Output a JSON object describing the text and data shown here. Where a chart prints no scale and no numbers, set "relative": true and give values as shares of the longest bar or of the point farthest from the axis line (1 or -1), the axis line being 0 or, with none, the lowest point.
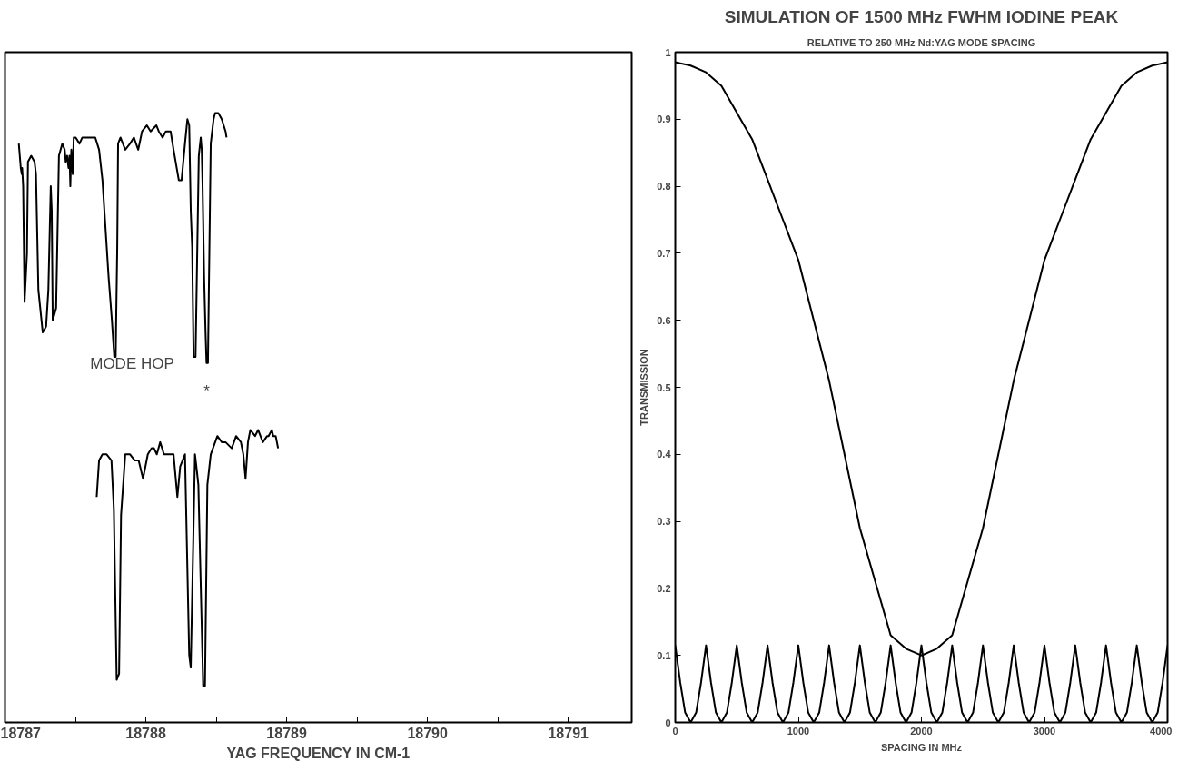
{
  "chart_data": [
    {
      "type": "line",
      "relative": true,
      "xlabel": "YAG FREQUENCY IN CM-1",
      "tick_labels": "x",
      "grid": false,
      "marker": "none",
      "line_style": "solid",
      "xlim": [
        18787,
        18791.45
      ],
      "xticks": [
        18787,
        {
          "value": 18787.5,
          "label": null
        },
        18788,
        {
          "value": 18788.5,
          "label": null
        },
        18789,
        {
          "value": 18789.5,
          "label": null
        },
        18790,
        {
          "value": 18790.5,
          "label": null
        },
        18791
      ],
      "annotations": [
        "MODE HOP",
        "*"
      ],
      "series": [
        {
          "color": "#000000",
          "x": [
            18787.098,
            18787.112,
            18787.119,
            18787.122,
            18787.129,
            18787.139,
            18787.156,
            18787.163,
            18787.186,
            18787.21,
            18787.22,
            18787.237,
            18787.268,
            18787.292,
            18787.308,
            18787.325,
            18787.332,
            18787.339,
            18787.363,
            18787.383,
            18787.407,
            18787.424,
            18787.431,
            18787.441,
            18787.451,
            18787.458,
            18787.464,
            18787.471,
            18787.481,
            18787.488,
            18787.502,
            18787.529,
            18787.549,
            18787.641,
            18787.668,
            18787.692,
            18787.736,
            18787.759,
            18787.776,
            18787.786,
            18787.79,
            18787.797,
            18787.803,
            18787.82,
            18787.854,
            18787.888,
            18787.915,
            18787.946,
            18787.973,
            18788.007,
            18788.034,
            18788.075,
            18788.092,
            18788.119,
            18788.142,
            18788.166,
            18788.176,
            18788.197,
            18788.234,
            18788.254,
            18788.278,
            18788.295,
            18788.308,
            18788.319,
            18788.329,
            18788.339,
            18788.353,
            18788.376,
            18788.39,
            18788.397,
            18788.403,
            18788.414,
            18788.424,
            18788.431,
            18788.441,
            18788.447,
            18788.461,
            18788.481,
            18788.492,
            18788.515,
            18788.539,
            18788.566,
            18788.573
          ],
          "values": [
            0.95,
            0.91,
            0.9,
            0.91,
            0.88,
            0.69,
            0.77,
            0.92,
            0.93,
            0.92,
            0.9,
            0.71,
            0.64,
            0.65,
            0.71,
            0.88,
            0.84,
            0.66,
            0.68,
            0.93,
            0.95,
            0.94,
            0.92,
            0.93,
            0.91,
            0.93,
            0.88,
            0.94,
            0.9,
            0.96,
            0.96,
            0.95,
            0.96,
            0.96,
            0.94,
            0.89,
            0.73,
            0.66,
            0.6,
            0.6,
            0.67,
            0.78,
            0.95,
            0.96,
            0.94,
            0.95,
            0.96,
            0.94,
            0.97,
            0.98,
            0.97,
            0.98,
            0.97,
            0.96,
            0.97,
            0.97,
            0.97,
            0.94,
            0.89,
            0.89,
            0.95,
            0.99,
            0.98,
            0.84,
            0.78,
            0.6,
            0.6,
            0.93,
            0.96,
            0.94,
            0.88,
            0.73,
            0.64,
            0.59,
            0.59,
            0.7,
            0.95,
            0.99,
            1.0,
            1.0,
            0.99,
            0.97,
            0.96
          ]
        },
        {
          "color": "#000000",
          "x": [
            18787.651,
            18787.668,
            18787.692,
            18787.722,
            18787.756,
            18787.773,
            18787.793,
            18787.81,
            18787.824,
            18787.854,
            18787.888,
            18787.922,
            18787.949,
            18787.98,
            18788.014,
            18788.041,
            18788.058,
            18788.078,
            18788.102,
            18788.129,
            18788.159,
            18788.173,
            18788.197,
            18788.224,
            18788.244,
            18788.278,
            18788.308,
            18788.319,
            18788.349,
            18788.359,
            18788.373,
            18788.407,
            18788.42,
            18788.437,
            18788.461,
            18788.508,
            18788.539,
            18788.566,
            18788.61,
            18788.641,
            18788.675,
            18788.692,
            18788.708,
            18788.725,
            18788.742,
            18788.776,
            18788.797,
            18788.831,
            18788.861,
            18788.871,
            18788.895,
            18788.905,
            18788.922,
            18788.939
          ],
          "values": [
            0.37,
            0.43,
            0.44,
            0.44,
            0.43,
            0.35,
            0.07,
            0.08,
            0.34,
            0.44,
            0.44,
            0.43,
            0.43,
            0.4,
            0.44,
            0.45,
            0.45,
            0.44,
            0.46,
            0.44,
            0.44,
            0.44,
            0.44,
            0.37,
            0.42,
            0.44,
            0.11,
            0.09,
            0.44,
            0.42,
            0.39,
            0.06,
            0.06,
            0.39,
            0.44,
            0.47,
            0.46,
            0.46,
            0.45,
            0.47,
            0.46,
            0.44,
            0.4,
            0.46,
            0.48,
            0.47,
            0.48,
            0.46,
            0.47,
            0.47,
            0.48,
            0.47,
            0.47,
            0.45
          ]
        }
      ]
    },
    {
      "type": "line",
      "title": "SIMULATION OF 1500 MHz FWHM IODINE PEAK",
      "subtitle": "RELATIVE TO 250 MHz Nd:YAG MODE SPACING",
      "xlabel": "SPACING IN MHz",
      "ylabel": "TRANSMISSION",
      "grid": false,
      "marker": "none",
      "line_style": "solid",
      "xlim": [
        0,
        4000
      ],
      "ylim": [
        0,
        1
      ],
      "xticks": [
        0,
        1000,
        2000,
        3000,
        4000
      ],
      "yticks": [
        0,
        0.1,
        0.2,
        0.3,
        0.4,
        0.5,
        0.6,
        0.7,
        0.8,
        0.9,
        1
      ],
      "series": [
        {
          "color": "#000000",
          "x": [
            0,
            125,
            250,
            375,
            500,
            625,
            750,
            875,
            1000,
            1125,
            1250,
            1375,
            1500,
            1625,
            1750,
            1875,
            2000,
            2125,
            2250,
            2375,
            2500,
            2625,
            2750,
            2875,
            3000,
            3125,
            3250,
            3375,
            3500,
            3625,
            3750,
            3875,
            4000
          ],
          "values": [
            0.985,
            0.98,
            0.97,
            0.95,
            0.91,
            0.87,
            0.81,
            0.75,
            0.69,
            0.6,
            0.51,
            0.4,
            0.29,
            0.21,
            0.13,
            0.11,
            0.1,
            0.11,
            0.13,
            0.21,
            0.29,
            0.4,
            0.51,
            0.6,
            0.69,
            0.75,
            0.81,
            0.87,
            0.91,
            0.95,
            0.97,
            0.98,
            0.985
          ]
        },
        {
          "color": "#000000",
          "x": [
            0,
            40,
            80,
            125,
            170,
            210,
            250,
            290,
            330,
            375,
            420,
            460,
            500,
            540,
            580,
            625,
            670,
            710,
            750,
            790,
            830,
            875,
            920,
            960,
            1000,
            1040,
            1080,
            1125,
            1170,
            1210,
            1250,
            1290,
            1330,
            1375,
            1420,
            1460,
            1500,
            1540,
            1580,
            1625,
            1670,
            1710,
            1750,
            1790,
            1830,
            1875,
            1920,
            1960,
            2000,
            2040,
            2080,
            2125,
            2170,
            2210,
            2250,
            2290,
            2330,
            2375,
            2420,
            2460,
            2500,
            2540,
            2580,
            2625,
            2670,
            2710,
            2750,
            2790,
            2830,
            2875,
            2920,
            2960,
            3000,
            3040,
            3080,
            3125,
            3170,
            3210,
            3250,
            3290,
            3330,
            3375,
            3420,
            3460,
            3500,
            3540,
            3580,
            3625,
            3670,
            3710,
            3750,
            3790,
            3830,
            3875,
            3920,
            3960,
            4000
          ],
          "values": [
            0.115,
            0.06,
            0.015,
            0,
            0.015,
            0.06,
            0.115,
            0.06,
            0.015,
            0,
            0.015,
            0.06,
            0.115,
            0.06,
            0.015,
            0,
            0.015,
            0.06,
            0.115,
            0.06,
            0.015,
            0,
            0.015,
            0.06,
            0.115,
            0.06,
            0.015,
            0,
            0.015,
            0.06,
            0.115,
            0.06,
            0.015,
            0,
            0.015,
            0.06,
            0.115,
            0.06,
            0.015,
            0,
            0.015,
            0.06,
            0.115,
            0.06,
            0.015,
            0,
            0.015,
            0.06,
            0.115,
            0.06,
            0.015,
            0,
            0.015,
            0.06,
            0.115,
            0.06,
            0.015,
            0,
            0.015,
            0.06,
            0.115,
            0.06,
            0.015,
            0,
            0.015,
            0.06,
            0.115,
            0.06,
            0.015,
            0,
            0.015,
            0.06,
            0.115,
            0.06,
            0.015,
            0,
            0.015,
            0.06,
            0.115,
            0.06,
            0.015,
            0,
            0.015,
            0.06,
            0.115,
            0.06,
            0.015,
            0,
            0.015,
            0.06,
            0.115,
            0.06,
            0.015,
            0,
            0.015,
            0.06,
            0.115
          ]
        }
      ]
    }
  ]
}
